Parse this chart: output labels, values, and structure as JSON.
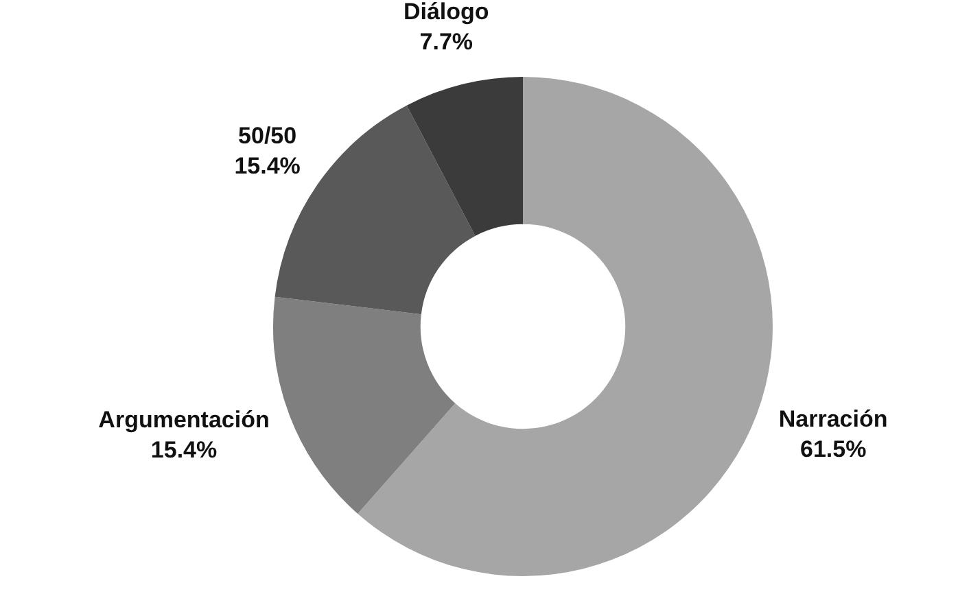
{
  "chart_data": {
    "type": "donut",
    "categories": [
      "Narración",
      "Argumentación",
      "50/50",
      "Diálogo"
    ],
    "values": [
      61.5,
      15.4,
      15.4,
      7.7
    ],
    "colors": [
      "#a6a6a6",
      "#7f7f7f",
      "#595959",
      "#3b3b3b"
    ],
    "value_labels": [
      "61.5%",
      "15.4%",
      "15.4%",
      "7.7%"
    ],
    "legend": false
  }
}
